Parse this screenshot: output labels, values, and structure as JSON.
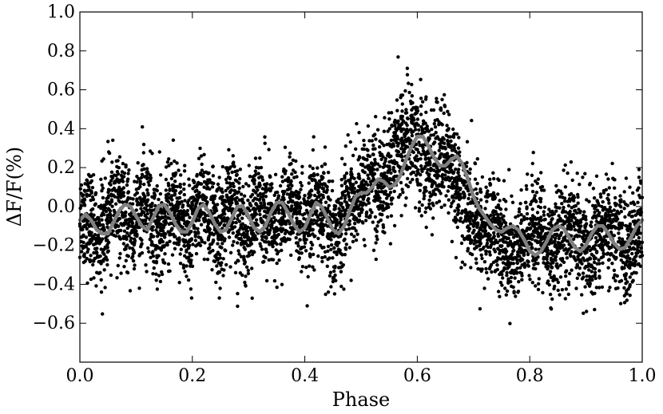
{
  "chart_data": {
    "type": "scatter",
    "title": "",
    "xlabel": "Phase",
    "ylabel": "ΔF/F(%)",
    "xlim": [
      0.0,
      1.0
    ],
    "ylim": [
      -0.8,
      1.0
    ],
    "xticks": [
      0.0,
      0.2,
      0.4,
      0.6,
      0.8,
      1.0
    ],
    "xtick_labels": [
      "0.0",
      "0.2",
      "0.4",
      "0.6",
      "0.8",
      "1.0"
    ],
    "yticks": [
      -0.6,
      -0.4,
      -0.2,
      0.0,
      0.2,
      0.4,
      0.6,
      0.8,
      1.0
    ],
    "ytick_labels": [
      "−0.6",
      "−0.4",
      "−0.2",
      "0.0",
      "0.2",
      "0.4",
      "0.6",
      "0.8",
      "1.0"
    ],
    "grid": false,
    "legend": "none",
    "colors": {
      "points": "#000000",
      "model": "#808080"
    },
    "series": [
      {
        "type": "scatter",
        "x": [
          0.005,
          0.015,
          0.025,
          0.035,
          0.045,
          0.055,
          0.065,
          0.075,
          0.085,
          0.095,
          0.105,
          0.115,
          0.125,
          0.135,
          0.145,
          0.155,
          0.165,
          0.175,
          0.185,
          0.195,
          0.205,
          0.215,
          0.225,
          0.235,
          0.245,
          0.255,
          0.265,
          0.275,
          0.285,
          0.295,
          0.305,
          0.315,
          0.325,
          0.335,
          0.345,
          0.355,
          0.365,
          0.375,
          0.385,
          0.395,
          0.405,
          0.415,
          0.425,
          0.435,
          0.445,
          0.455,
          0.465,
          0.475,
          0.485,
          0.495,
          0.505,
          0.515,
          0.525,
          0.535,
          0.545,
          0.555,
          0.565,
          0.575,
          0.585,
          0.595,
          0.605,
          0.615,
          0.625,
          0.635,
          0.645,
          0.655,
          0.665,
          0.675,
          0.685,
          0.695,
          0.705,
          0.715,
          0.725,
          0.735,
          0.745,
          0.755,
          0.765,
          0.775,
          0.785,
          0.795,
          0.805,
          0.815,
          0.825,
          0.835,
          0.845,
          0.855,
          0.865,
          0.875,
          0.885,
          0.895,
          0.905,
          0.915,
          0.925,
          0.935,
          0.945,
          0.955,
          0.965,
          0.975,
          0.985,
          0.995
        ],
        "y": [
          -0.05,
          -0.08,
          -0.12,
          -0.14,
          -0.1,
          -0.02,
          0.01,
          -0.03,
          -0.1,
          -0.12,
          -0.05,
          0.01,
          -0.04,
          -0.11,
          -0.13,
          -0.06,
          0.01,
          -0.02,
          -0.1,
          -0.13,
          -0.07,
          0.01,
          -0.01,
          -0.09,
          -0.13,
          -0.08,
          0.0,
          0.0,
          -0.08,
          -0.13,
          -0.09,
          -0.01,
          0.02,
          -0.06,
          -0.12,
          -0.1,
          -0.02,
          0.02,
          -0.04,
          -0.11,
          -0.12,
          -0.05,
          0.02,
          -0.02,
          -0.1,
          -0.14,
          -0.08,
          0.0,
          0.06,
          0.07,
          0.1,
          0.14,
          0.12,
          0.1,
          0.14,
          0.2,
          0.27,
          0.33,
          0.37,
          0.34,
          0.28,
          0.23,
          0.2,
          0.23,
          0.26,
          0.24,
          0.17,
          0.08,
          0.01,
          -0.05,
          -0.09,
          -0.12,
          -0.11,
          -0.1,
          -0.13,
          -0.19,
          -0.24,
          -0.25,
          -0.21,
          -0.15,
          -0.11,
          -0.12,
          -0.17,
          -0.22,
          -0.23,
          -0.18,
          -0.12,
          -0.1,
          -0.13,
          -0.19,
          -0.22,
          -0.2,
          -0.14,
          -0.09,
          -0.1,
          -0.15,
          -0.2,
          -0.22,
          -0.18,
          -0.1
        ],
        "scatter_sd": [
          0.13,
          0.13,
          0.13,
          0.13,
          0.13,
          0.13,
          0.13,
          0.13,
          0.13,
          0.13,
          0.13,
          0.13,
          0.13,
          0.13,
          0.13,
          0.13,
          0.13,
          0.13,
          0.13,
          0.13,
          0.13,
          0.13,
          0.13,
          0.13,
          0.13,
          0.13,
          0.13,
          0.13,
          0.13,
          0.13,
          0.13,
          0.13,
          0.13,
          0.13,
          0.13,
          0.13,
          0.13,
          0.13,
          0.13,
          0.13,
          0.13,
          0.13,
          0.13,
          0.13,
          0.13,
          0.13,
          0.13,
          0.13,
          0.13,
          0.13,
          0.13,
          0.13,
          0.13,
          0.13,
          0.13,
          0.14,
          0.14,
          0.15,
          0.15,
          0.15,
          0.15,
          0.14,
          0.14,
          0.14,
          0.14,
          0.14,
          0.14,
          0.13,
          0.13,
          0.13,
          0.13,
          0.13,
          0.13,
          0.13,
          0.13,
          0.13,
          0.13,
          0.13,
          0.13,
          0.13,
          0.13,
          0.13,
          0.13,
          0.13,
          0.13,
          0.13,
          0.13,
          0.13,
          0.13,
          0.13,
          0.13,
          0.13,
          0.13,
          0.13,
          0.13,
          0.13,
          0.13,
          0.13,
          0.13,
          0.13
        ],
        "points_per_bin": 50
      },
      {
        "type": "line",
        "x": [
          0.0,
          0.01,
          0.02,
          0.03,
          0.04,
          0.05,
          0.06,
          0.07,
          0.08,
          0.09,
          0.1,
          0.11,
          0.12,
          0.13,
          0.14,
          0.15,
          0.16,
          0.17,
          0.18,
          0.19,
          0.2,
          0.21,
          0.22,
          0.23,
          0.24,
          0.25,
          0.26,
          0.27,
          0.28,
          0.29,
          0.3,
          0.31,
          0.32,
          0.33,
          0.34,
          0.35,
          0.36,
          0.37,
          0.38,
          0.39,
          0.4,
          0.41,
          0.42,
          0.43,
          0.44,
          0.45,
          0.46,
          0.47,
          0.48,
          0.49,
          0.5,
          0.51,
          0.52,
          0.53,
          0.54,
          0.55,
          0.56,
          0.57,
          0.58,
          0.59,
          0.6,
          0.61,
          0.62,
          0.63,
          0.64,
          0.65,
          0.66,
          0.67,
          0.68,
          0.69,
          0.7,
          0.71,
          0.72,
          0.73,
          0.74,
          0.75,
          0.76,
          0.77,
          0.78,
          0.79,
          0.8,
          0.81,
          0.82,
          0.83,
          0.84,
          0.85,
          0.86,
          0.87,
          0.88,
          0.89,
          0.9,
          0.91,
          0.92,
          0.93,
          0.94,
          0.95,
          0.96,
          0.97,
          0.98,
          0.99,
          1.0
        ],
        "y": [
          -0.07,
          -0.04,
          -0.07,
          -0.12,
          -0.14,
          -0.14,
          -0.08,
          -0.02,
          0.01,
          0.0,
          -0.05,
          -0.1,
          -0.12,
          -0.06,
          0.0,
          0.01,
          -0.03,
          -0.09,
          -0.13,
          -0.13,
          -0.08,
          -0.01,
          0.01,
          -0.03,
          -0.09,
          -0.13,
          -0.12,
          -0.06,
          0.0,
          0.0,
          -0.05,
          -0.11,
          -0.13,
          -0.1,
          -0.03,
          0.02,
          0.02,
          -0.03,
          -0.09,
          -0.13,
          -0.11,
          -0.04,
          0.02,
          0.0,
          -0.06,
          -0.12,
          -0.14,
          -0.1,
          -0.02,
          0.05,
          0.07,
          0.07,
          0.1,
          0.14,
          0.13,
          0.1,
          0.11,
          0.16,
          0.24,
          0.31,
          0.36,
          0.36,
          0.31,
          0.25,
          0.21,
          0.21,
          0.24,
          0.26,
          0.22,
          0.14,
          0.05,
          -0.01,
          -0.05,
          -0.09,
          -0.12,
          -0.13,
          -0.11,
          -0.1,
          -0.12,
          -0.17,
          -0.23,
          -0.25,
          -0.23,
          -0.18,
          -0.12,
          -0.1,
          -0.11,
          -0.16,
          -0.21,
          -0.23,
          -0.2,
          -0.14,
          -0.1,
          -0.1,
          -0.14,
          -0.19,
          -0.22,
          -0.21,
          -0.16,
          -0.1,
          -0.07
        ]
      }
    ]
  }
}
